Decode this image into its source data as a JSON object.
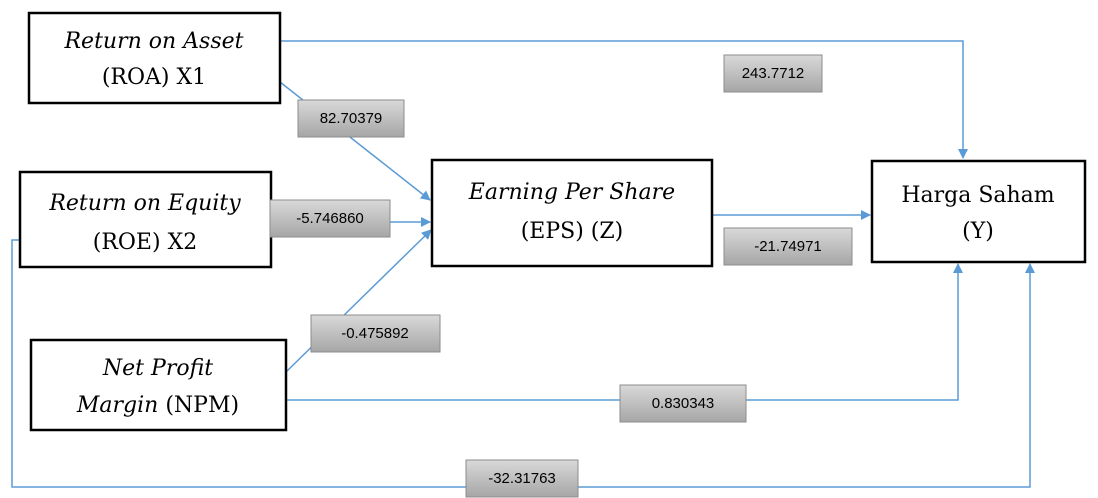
{
  "nodes": [
    {
      "lines": [
        "Return on Asset",
        "(ROA) X1"
      ]
    },
    {
      "lines": [
        "Return on Equity",
        "(ROE) X2"
      ]
    },
    {
      "lines": [
        "Net Profit",
        "Margin",
        "(NPM)"
      ]
    },
    {
      "lines": [
        "Earning Per Share",
        "(EPS) (Z)"
      ]
    },
    {
      "lines": [
        "Harga Saham",
        "(Y)"
      ]
    }
  ],
  "edges": [
    {
      "label": "243.7712"
    },
    {
      "label": "82.70379"
    },
    {
      "label": "-5.746860"
    },
    {
      "label": "-0.475892"
    },
    {
      "label": "-21.74971"
    },
    {
      "label": "0.830343"
    },
    {
      "label": "-32.31763"
    }
  ]
}
